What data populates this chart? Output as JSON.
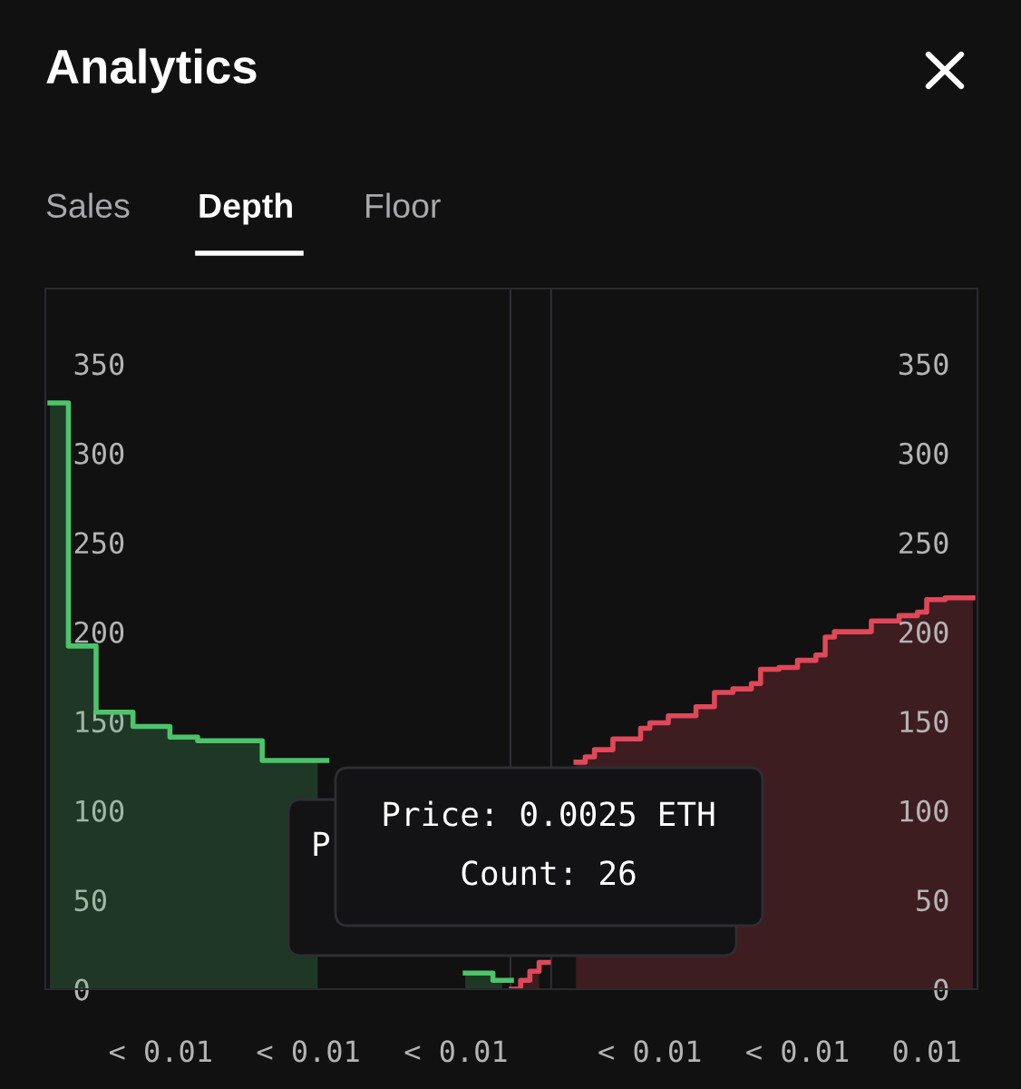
{
  "chart_data": {
    "type": "area",
    "title": "Analytics",
    "annotations": [
      "Sales",
      "Depth",
      "Floor",
      "Price: 0.0025 ETH",
      "Count: 26",
      "P"
    ],
    "categories": [
      null,
      null,
      null,
      null,
      null,
      null,
      null,
      null,
      null,
      null,
      null,
      null,
      "< 0.01",
      null,
      null,
      null,
      null,
      null,
      null,
      null,
      null,
      null,
      null,
      null,
      null,
      null,
      null,
      null,
      "< 0.01",
      null,
      null,
      null,
      null,
      null,
      null,
      null,
      null,
      null,
      null,
      null,
      null,
      null,
      null,
      null,
      "< 0.01",
      null,
      null,
      null,
      null,
      null,
      null,
      null,
      null,
      null,
      null,
      null,
      null,
      null,
      null,
      null,
      null,
      null,
      null,
      null,
      null,
      "< 0.01",
      null,
      null,
      null,
      null,
      null,
      null,
      null,
      null,
      null,
      null,
      null,
      null,
      null,
      null,
      null,
      "< 0.01",
      null,
      null,
      null,
      null,
      null,
      null,
      null,
      null,
      null,
      null,
      null,
      null,
      null,
      "0.01",
      null,
      null,
      null,
      null,
      null
    ],
    "series": [
      {
        "color": "#4cc46a",
        "values": [
          328,
          328,
          192,
          192,
          192,
          155,
          155,
          155,
          155,
          147,
          147,
          147,
          147,
          141,
          141,
          141,
          139,
          139,
          139,
          139,
          139,
          139,
          139,
          128,
          128,
          128,
          128,
          128,
          128,
          128,
          null,
          null,
          null,
          null,
          null,
          null,
          null,
          null,
          null,
          null,
          null,
          null,
          null,
          null,
          null,
          9,
          9,
          9,
          5,
          5,
          null,
          null,
          null,
          null,
          null,
          null,
          null,
          null,
          null,
          null,
          null,
          null,
          null,
          null,
          null,
          null,
          null,
          null,
          null,
          null,
          null,
          null,
          null,
          null,
          null,
          null,
          null,
          null,
          null,
          null,
          null,
          null,
          null,
          null,
          null,
          null,
          null,
          null,
          null,
          null,
          null,
          null,
          null,
          null,
          null,
          null,
          null,
          null,
          null,
          null,
          null
        ]
      },
      {
        "color": "#e04858",
        "values": [
          null,
          null,
          null,
          null,
          null,
          null,
          null,
          null,
          null,
          null,
          null,
          null,
          null,
          null,
          null,
          null,
          null,
          null,
          null,
          null,
          null,
          null,
          null,
          null,
          null,
          null,
          null,
          null,
          null,
          null,
          null,
          null,
          null,
          null,
          null,
          null,
          null,
          null,
          null,
          null,
          null,
          null,
          null,
          null,
          null,
          null,
          null,
          null,
          null,
          null,
          0,
          5,
          10,
          15,
          null,
          null,
          null,
          127,
          130,
          134,
          134,
          140,
          140,
          140,
          146,
          149,
          149,
          153,
          153,
          153,
          158,
          158,
          166,
          166,
          168,
          168,
          171,
          179,
          179,
          180,
          180,
          184,
          184,
          187,
          197,
          200,
          200,
          200,
          200,
          206,
          206,
          206,
          209,
          209,
          211,
          218,
          218,
          219,
          219,
          219,
          219
        ]
      }
    ],
    "ylim": [
      0,
      392
    ],
    "yticks": [
      0,
      50,
      100,
      150,
      200,
      250,
      300,
      350
    ],
    "y2lim": [
      0,
      392
    ],
    "y2ticks": [
      0,
      50,
      100,
      150,
      200,
      250,
      300,
      350
    ],
    "grid": false,
    "legend": false
  }
}
